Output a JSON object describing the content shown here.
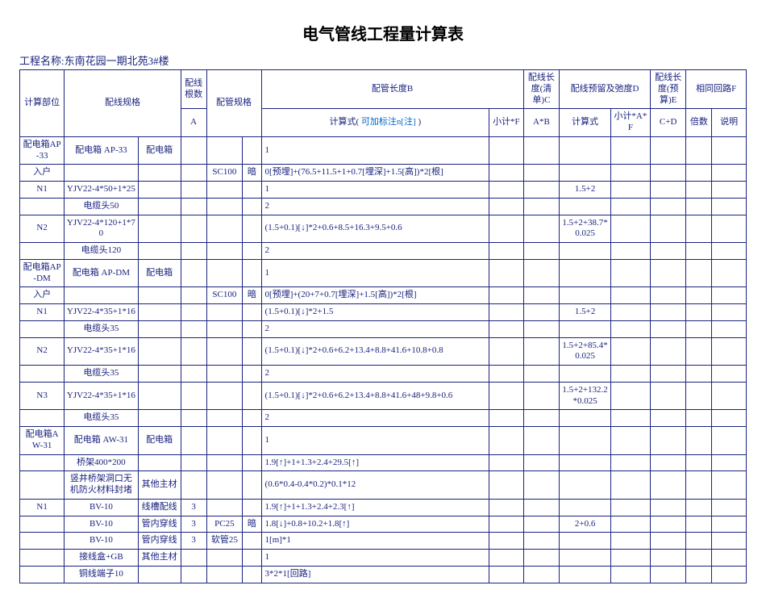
{
  "title": "电气管线工程量计算表",
  "project_label": "工程名称:",
  "project_name": "东南花园一期北苑3#楼",
  "colors": {
    "border": "#1a237e",
    "text": "#1a237e",
    "note": "#0066cc",
    "background": "#ffffff"
  },
  "columns": {
    "w_calcpart": 52,
    "w_wirespec": 86,
    "w_wirespec2": 50,
    "w_count": 30,
    "w_pipespec": 42,
    "w_an": 22,
    "w_formula": 266,
    "w_subtot": 40,
    "w_listlen": 42,
    "w_reserve_f": 60,
    "w_reserve_s": 46,
    "w_budget": 42,
    "w_times": 30,
    "w_desc": 40
  },
  "headers": {
    "calcpart": "计算部位",
    "wirespec": "配线规格",
    "count": "配线根数",
    "count_sub": "A",
    "pipespec": "配管规格",
    "pipelen": "配管长度B",
    "formula_prefix": "计算式( ",
    "formula_note": "可加标注n[注]",
    "formula_suffix": " )",
    "subtotal": "小计*F",
    "listlen": "配线长度(清单)C",
    "listlen_sub": "A*B",
    "reserve": "配线预留及弛度D",
    "reserve_f": "计算式",
    "reserve_s": "小计*A*F",
    "budget": "配线长度(预算)E",
    "budget_sub": "C+D",
    "circuit": "相同回路F",
    "times": "倍数",
    "desc": "说明"
  },
  "rows": [
    {
      "cp": "配电箱AP-33",
      "ws1": "配电箱 AP-33",
      "ws2": "配电箱",
      "cnt": "",
      "ps": "",
      "an": "",
      "fml": "1",
      "sub": "",
      "cl": "",
      "rf": "",
      "rs": "",
      "bl": "",
      "tm": "",
      "ds": ""
    },
    {
      "cp": "入户",
      "ws1": "",
      "ws2": "",
      "cnt": "",
      "ps": "SC100",
      "an": "暗",
      "fml": "0[预埋]+(76.5+11.5+1+0.7[埋深]+1.5[高])*2[根]",
      "sub": "",
      "cl": "",
      "rf": "",
      "rs": "",
      "bl": "",
      "tm": "",
      "ds": ""
    },
    {
      "cp": "N1",
      "ws1": "YJV22-4*50+1*25",
      "ws2": "",
      "cnt": "",
      "ps": "",
      "an": "",
      "fml": "1",
      "sub": "",
      "cl": "",
      "rf": "1.5+2",
      "rs": "",
      "bl": "",
      "tm": "",
      "ds": ""
    },
    {
      "cp": "",
      "ws1": "电缆头50",
      "ws2": "",
      "cnt": "",
      "ps": "",
      "an": "",
      "fml": "2",
      "sub": "",
      "cl": "",
      "rf": "",
      "rs": "",
      "bl": "",
      "tm": "",
      "ds": ""
    },
    {
      "cp": "N2",
      "ws1": "YJV22-4*120+1*70",
      "ws2": "",
      "cnt": "",
      "ps": "",
      "an": "",
      "fml": "(1.5+0.1)[↓]*2+0.6+8.5+16.3+9.5+0.6",
      "sub": "",
      "cl": "",
      "rf": "1.5+2+38.7*0.025",
      "rs": "",
      "bl": "",
      "tm": "",
      "ds": ""
    },
    {
      "cp": "",
      "ws1": "电缆头120",
      "ws2": "",
      "cnt": "",
      "ps": "",
      "an": "",
      "fml": "2",
      "sub": "",
      "cl": "",
      "rf": "",
      "rs": "",
      "bl": "",
      "tm": "",
      "ds": ""
    },
    {
      "cp": "配电箱AP-DM",
      "ws1": "配电箱 AP-DM",
      "ws2": "配电箱",
      "cnt": "",
      "ps": "",
      "an": "",
      "fml": "1",
      "sub": "",
      "cl": "",
      "rf": "",
      "rs": "",
      "bl": "",
      "tm": "",
      "ds": ""
    },
    {
      "cp": "入户",
      "ws1": "",
      "ws2": "",
      "cnt": "",
      "ps": "SC100",
      "an": "暗",
      "fml": "0[预埋]+(20+7+0.7[埋深]+1.5[高])*2[根]",
      "sub": "",
      "cl": "",
      "rf": "",
      "rs": "",
      "bl": "",
      "tm": "",
      "ds": ""
    },
    {
      "cp": "N1",
      "ws1": "YJV22-4*35+1*16",
      "ws2": "",
      "cnt": "",
      "ps": "",
      "an": "",
      "fml": "(1.5+0.1)[↓]*2+1.5",
      "sub": "",
      "cl": "",
      "rf": "1.5+2",
      "rs": "",
      "bl": "",
      "tm": "",
      "ds": ""
    },
    {
      "cp": "",
      "ws1": "电缆头35",
      "ws2": "",
      "cnt": "",
      "ps": "",
      "an": "",
      "fml": "2",
      "sub": "",
      "cl": "",
      "rf": "",
      "rs": "",
      "bl": "",
      "tm": "",
      "ds": ""
    },
    {
      "cp": "N2",
      "ws1": "YJV22-4*35+1*16",
      "ws2": "",
      "cnt": "",
      "ps": "",
      "an": "",
      "fml": "(1.5+0.1)[↓]*2+0.6+6.2+13.4+8.8+41.6+10.8+0.8",
      "sub": "",
      "cl": "",
      "rf": "1.5+2+85.4*0.025",
      "rs": "",
      "bl": "",
      "tm": "",
      "ds": ""
    },
    {
      "cp": "",
      "ws1": "电缆头35",
      "ws2": "",
      "cnt": "",
      "ps": "",
      "an": "",
      "fml": "2",
      "sub": "",
      "cl": "",
      "rf": "",
      "rs": "",
      "bl": "",
      "tm": "",
      "ds": ""
    },
    {
      "cp": "N3",
      "ws1": "YJV22-4*35+1*16",
      "ws2": "",
      "cnt": "",
      "ps": "",
      "an": "",
      "fml": "(1.5+0.1)[↓]*2+0.6+6.2+13.4+8.8+41.6+48+9.8+0.6",
      "sub": "",
      "cl": "",
      "rf": "1.5+2+132.2*0.025",
      "rs": "",
      "bl": "",
      "tm": "",
      "ds": ""
    },
    {
      "cp": "",
      "ws1": "电缆头35",
      "ws2": "",
      "cnt": "",
      "ps": "",
      "an": "",
      "fml": "2",
      "sub": "",
      "cl": "",
      "rf": "",
      "rs": "",
      "bl": "",
      "tm": "",
      "ds": ""
    },
    {
      "cp": "配电箱AW-31",
      "ws1": "配电箱 AW-31",
      "ws2": "配电箱",
      "cnt": "",
      "ps": "",
      "an": "",
      "fml": "1",
      "sub": "",
      "cl": "",
      "rf": "",
      "rs": "",
      "bl": "",
      "tm": "",
      "ds": ""
    },
    {
      "cp": "",
      "ws1": "桥架400*200",
      "ws2": "",
      "cnt": "",
      "ps": "",
      "an": "",
      "fml": "1.9[↑]+1+1.3+2.4+29.5[↑]",
      "sub": "",
      "cl": "",
      "rf": "",
      "rs": "",
      "bl": "",
      "tm": "",
      "ds": ""
    },
    {
      "cp": "",
      "ws1": "竖井桥架洞口无机防火材料封堵",
      "ws2": "其他主材",
      "cnt": "",
      "ps": "",
      "an": "",
      "fml": "(0.6*0.4-0.4*0.2)*0.1*12",
      "sub": "",
      "cl": "",
      "rf": "",
      "rs": "",
      "bl": "",
      "tm": "",
      "ds": ""
    },
    {
      "cp": "N1",
      "ws1": "BV-10",
      "ws2": "线槽配线",
      "cnt": "3",
      "ps": "",
      "an": "",
      "fml": "1.9[↑]+1+1.3+2.4+2.3[↑]",
      "sub": "",
      "cl": "",
      "rf": "",
      "rs": "",
      "bl": "",
      "tm": "",
      "ds": ""
    },
    {
      "cp": "",
      "ws1": "BV-10",
      "ws2": "管内穿线",
      "cnt": "3",
      "ps": "PC25",
      "an": "暗",
      "fml": "1.8[↓]+0.8+10.2+1.8[↑]",
      "sub": "",
      "cl": "",
      "rf": "2+0.6",
      "rs": "",
      "bl": "",
      "tm": "",
      "ds": ""
    },
    {
      "cp": "",
      "ws1": "BV-10",
      "ws2": "管内穿线",
      "cnt": "3",
      "ps": "软管25",
      "an": "",
      "fml": "1[m]*1",
      "sub": "",
      "cl": "",
      "rf": "",
      "rs": "",
      "bl": "",
      "tm": "",
      "ds": ""
    },
    {
      "cp": "",
      "ws1": "接线盒+GB",
      "ws2": "其他主材",
      "cnt": "",
      "ps": "",
      "an": "",
      "fml": "1",
      "sub": "",
      "cl": "",
      "rf": "",
      "rs": "",
      "bl": "",
      "tm": "",
      "ds": ""
    },
    {
      "cp": "",
      "ws1": "铜线端子10",
      "ws2": "",
      "cnt": "",
      "ps": "",
      "an": "",
      "fml": "3*2*1[回路]",
      "sub": "",
      "cl": "",
      "rf": "",
      "rs": "",
      "bl": "",
      "tm": "",
      "ds": ""
    }
  ]
}
